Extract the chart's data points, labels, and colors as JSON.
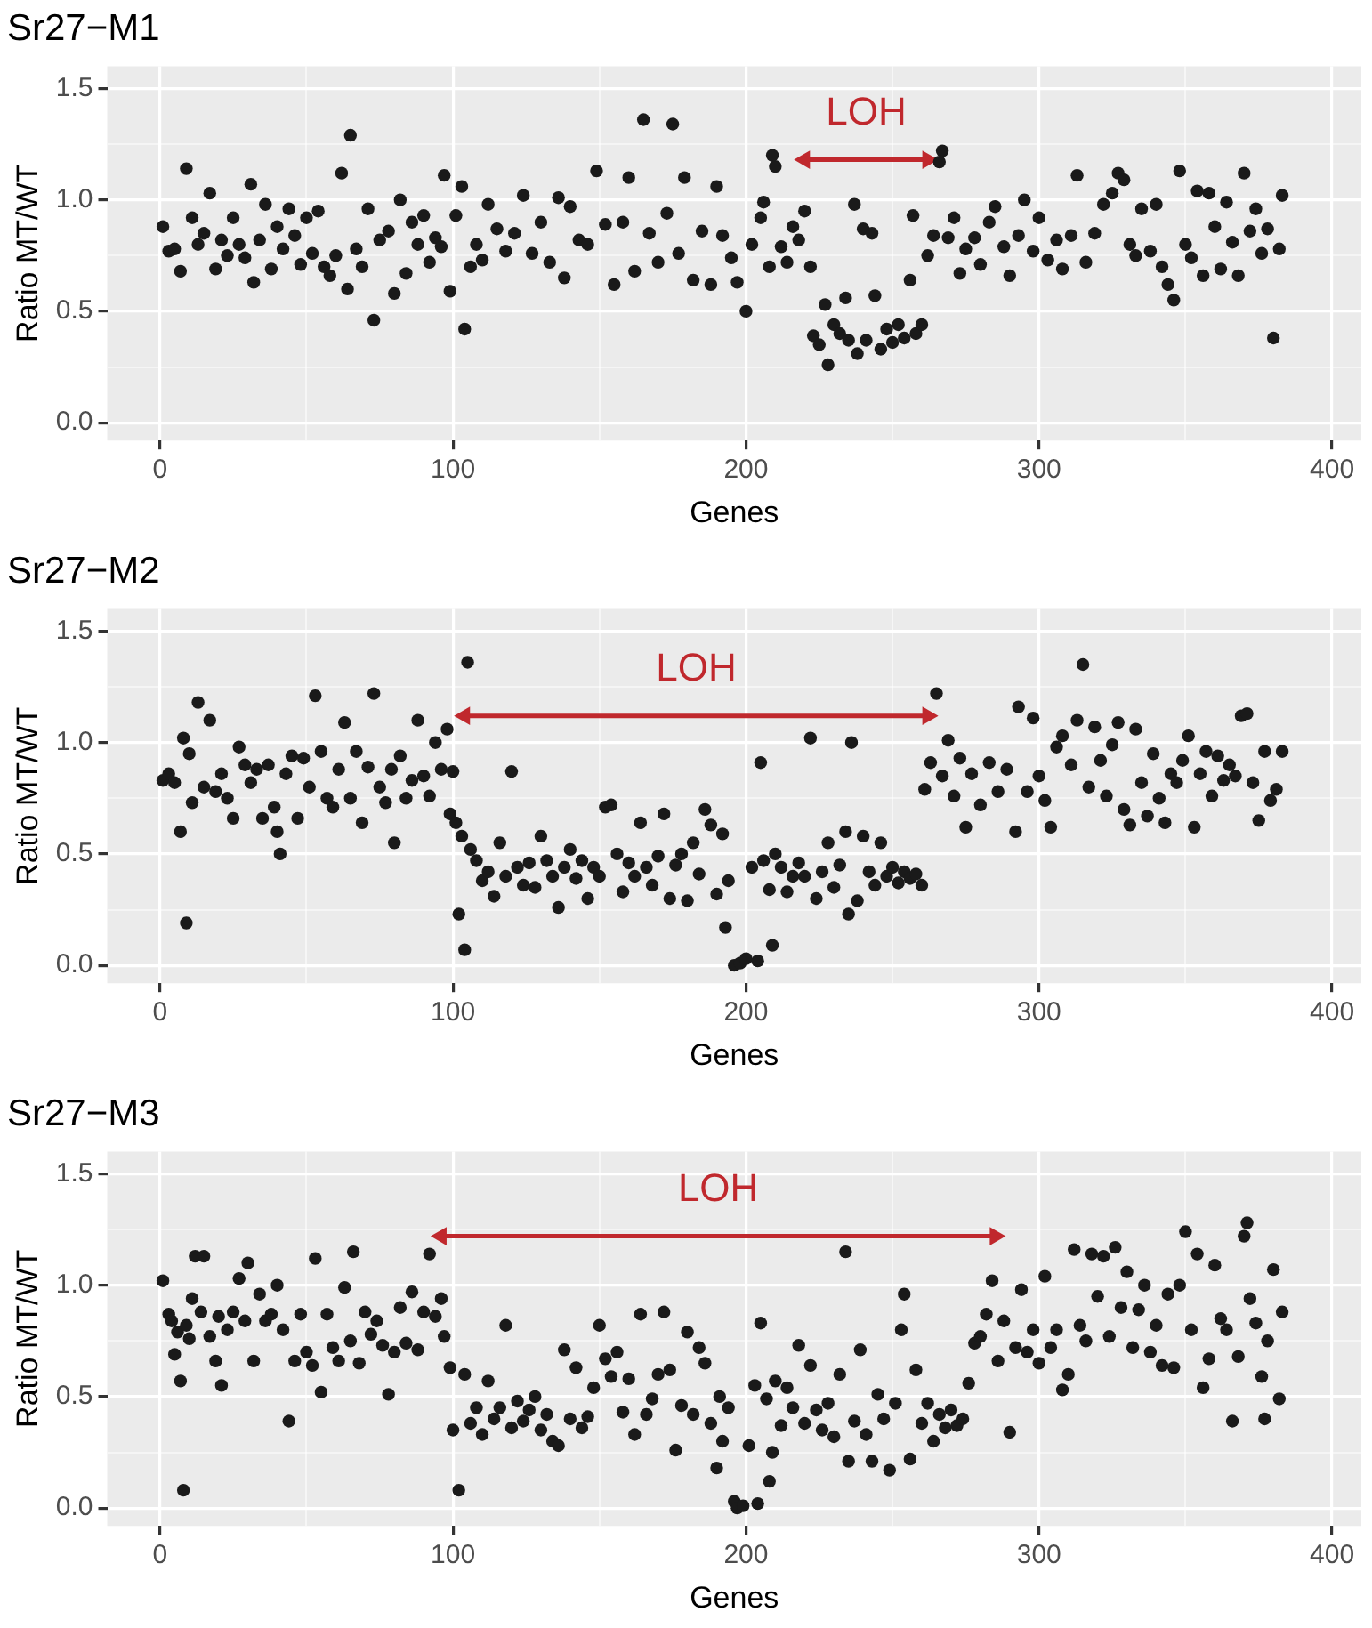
{
  "chart_data": [
    {
      "type": "scatter",
      "title": "Sr27−M1",
      "xlabel": "Genes",
      "ylabel": "Ratio MT/WT",
      "grid": true,
      "series": [
        {
          "type": "scatter",
          "color": "#1a1a1a",
          "marker": "circle",
          "x": [
            1,
            3,
            5,
            7,
            9,
            11,
            13,
            15,
            17,
            19,
            21,
            23,
            25,
            27,
            29,
            31,
            32,
            34,
            36,
            38,
            40,
            42,
            44,
            46,
            48,
            50,
            52,
            54,
            56,
            58,
            60,
            62,
            64,
            65,
            67,
            69,
            71,
            73,
            75,
            78,
            80,
            82,
            84,
            86,
            88,
            90,
            92,
            94,
            96,
            97,
            99,
            101,
            103,
            104,
            106,
            108,
            110,
            112,
            115,
            118,
            121,
            124,
            127,
            130,
            133,
            136,
            138,
            140,
            143,
            146,
            149,
            152,
            155,
            158,
            160,
            162,
            165,
            167,
            170,
            173,
            175,
            177,
            179,
            182,
            185,
            188,
            190,
            192,
            195,
            197,
            200,
            202,
            205,
            206,
            208,
            209,
            210,
            212,
            214,
            216,
            218,
            220,
            222,
            223,
            225,
            227,
            228,
            230,
            232,
            234,
            235,
            237,
            238,
            240,
            241,
            243,
            244,
            246,
            248,
            250,
            252,
            254,
            256,
            257,
            258,
            260,
            262,
            264,
            266,
            267,
            269,
            271,
            273,
            275,
            278,
            280,
            283,
            285,
            288,
            290,
            293,
            295,
            298,
            300,
            303,
            306,
            308,
            311,
            313,
            316,
            319,
            322,
            325,
            327,
            329,
            331,
            333,
            335,
            338,
            340,
            342,
            344,
            346,
            348,
            350,
            352,
            354,
            356,
            358,
            360,
            362,
            364,
            366,
            368,
            370,
            372,
            374,
            376,
            378,
            380,
            382,
            383
          ],
          "values": [
            0.88,
            0.77,
            0.78,
            0.68,
            1.14,
            0.92,
            0.8,
            0.85,
            1.03,
            0.69,
            0.82,
            0.75,
            0.92,
            0.8,
            0.74,
            1.07,
            0.63,
            0.82,
            0.98,
            0.69,
            0.88,
            0.78,
            0.96,
            0.84,
            0.71,
            0.92,
            0.76,
            0.95,
            0.7,
            0.66,
            0.75,
            1.12,
            0.6,
            1.29,
            0.78,
            0.7,
            0.96,
            0.46,
            0.82,
            0.86,
            0.58,
            1.0,
            0.67,
            0.9,
            0.8,
            0.93,
            0.72,
            0.83,
            0.79,
            1.11,
            0.59,
            0.93,
            1.06,
            0.42,
            0.7,
            0.8,
            0.73,
            0.98,
            0.87,
            0.77,
            0.85,
            1.02,
            0.76,
            0.9,
            0.72,
            1.01,
            0.65,
            0.97,
            0.82,
            0.8,
            1.13,
            0.89,
            0.62,
            0.9,
            1.1,
            0.68,
            1.36,
            0.85,
            0.72,
            0.94,
            1.34,
            0.76,
            1.1,
            0.64,
            0.86,
            0.62,
            1.06,
            0.84,
            0.74,
            0.63,
            0.5,
            0.8,
            0.92,
            0.99,
            0.7,
            1.2,
            1.15,
            0.79,
            0.72,
            0.88,
            0.82,
            0.95,
            0.7,
            0.39,
            0.35,
            0.53,
            0.26,
            0.44,
            0.4,
            0.56,
            0.37,
            0.98,
            0.31,
            0.87,
            0.37,
            0.85,
            0.57,
            0.33,
            0.42,
            0.36,
            0.44,
            0.38,
            0.64,
            0.93,
            0.4,
            0.44,
            0.75,
            0.84,
            1.17,
            1.22,
            0.83,
            0.92,
            0.67,
            0.78,
            0.83,
            0.71,
            0.9,
            0.97,
            0.79,
            0.66,
            0.84,
            1.0,
            0.77,
            0.92,
            0.73,
            0.82,
            0.69,
            0.84,
            1.11,
            0.72,
            0.85,
            0.98,
            1.03,
            1.12,
            1.09,
            0.8,
            0.75,
            0.96,
            0.77,
            0.98,
            0.7,
            0.62,
            0.55,
            1.13,
            0.8,
            0.74,
            1.04,
            0.66,
            1.03,
            0.88,
            0.69,
            0.99,
            0.81,
            0.66,
            1.12,
            0.86,
            0.96,
            0.76,
            0.87,
            0.38,
            0.78,
            1.02
          ]
        },
        {
          "type": "line",
          "color": "#c0282d",
          "marker": "triangle",
          "x": [
            220,
            262
          ],
          "values": [
            1.18,
            1.18
          ]
        }
      ],
      "xlim": [
        -18,
        410
      ],
      "ylim": [
        -0.08,
        1.6
      ],
      "xticks": [
        0,
        {
          "value": 50,
          "label": null
        },
        100,
        {
          "value": 150,
          "label": null
        },
        200,
        {
          "value": 250,
          "label": null
        },
        300,
        {
          "value": 350,
          "label": null
        },
        400
      ],
      "yticks": [
        {
          "value": 0,
          "label": "0.0"
        },
        {
          "value": 0.25,
          "label": null
        },
        {
          "value": 0.5,
          "label": "0.5"
        },
        {
          "value": 0.75,
          "label": null
        },
        {
          "value": 1,
          "label": "1.0"
        },
        {
          "value": 1.25,
          "label": null
        },
        {
          "value": 1.5,
          "label": "1.5"
        }
      ],
      "annotations": [
        "LOH"
      ]
    },
    {
      "type": "scatter",
      "title": "Sr27−M2",
      "xlabel": "Genes",
      "ylabel": "Ratio MT/WT",
      "grid": true,
      "series": [
        {
          "type": "scatter",
          "color": "#1a1a1a",
          "marker": "circle",
          "x": [
            1,
            3,
            5,
            7,
            8,
            9,
            10,
            11,
            13,
            15,
            17,
            19,
            21,
            23,
            25,
            27,
            29,
            31,
            33,
            35,
            37,
            39,
            40,
            41,
            43,
            45,
            47,
            49,
            51,
            53,
            55,
            57,
            59,
            61,
            63,
            65,
            67,
            69,
            71,
            73,
            75,
            77,
            79,
            80,
            82,
            84,
            86,
            88,
            90,
            92,
            94,
            96,
            98,
            99,
            100,
            101,
            102,
            103,
            104,
            105,
            106,
            108,
            110,
            112,
            114,
            116,
            118,
            120,
            122,
            124,
            126,
            128,
            130,
            132,
            134,
            136,
            138,
            140,
            142,
            144,
            146,
            148,
            150,
            152,
            154,
            156,
            158,
            160,
            162,
            164,
            166,
            168,
            170,
            172,
            174,
            176,
            178,
            180,
            182,
            184,
            186,
            188,
            190,
            192,
            193,
            194,
            196,
            198,
            200,
            202,
            204,
            205,
            206,
            208,
            209,
            210,
            212,
            214,
            216,
            218,
            220,
            222,
            224,
            226,
            228,
            230,
            232,
            234,
            235,
            236,
            238,
            240,
            242,
            244,
            246,
            248,
            250,
            252,
            254,
            256,
            258,
            260,
            261,
            263,
            265,
            267,
            269,
            271,
            273,
            275,
            277,
            280,
            283,
            286,
            289,
            292,
            293,
            296,
            298,
            300,
            302,
            304,
            306,
            308,
            311,
            313,
            315,
            317,
            319,
            321,
            323,
            325,
            327,
            329,
            331,
            333,
            335,
            337,
            339,
            341,
            343,
            345,
            347,
            349,
            351,
            353,
            355,
            357,
            359,
            361,
            363,
            365,
            367,
            369,
            371,
            373,
            375,
            377,
            379,
            381,
            383
          ],
          "values": [
            0.83,
            0.86,
            0.82,
            0.6,
            1.02,
            0.19,
            0.95,
            0.73,
            1.18,
            0.8,
            1.1,
            0.78,
            0.86,
            0.75,
            0.66,
            0.98,
            0.9,
            0.82,
            0.88,
            0.66,
            0.9,
            0.71,
            0.6,
            0.5,
            0.86,
            0.94,
            0.66,
            0.93,
            0.8,
            1.21,
            0.96,
            0.75,
            0.71,
            0.88,
            1.09,
            0.75,
            0.96,
            0.64,
            0.89,
            1.22,
            0.8,
            0.73,
            0.88,
            0.55,
            0.94,
            0.75,
            0.83,
            1.1,
            0.85,
            0.76,
            1.0,
            0.88,
            1.06,
            0.68,
            0.87,
            0.64,
            0.23,
            0.58,
            0.07,
            1.36,
            0.52,
            0.47,
            0.38,
            0.42,
            0.31,
            0.55,
            0.4,
            0.87,
            0.44,
            0.36,
            0.46,
            0.35,
            0.58,
            0.47,
            0.4,
            0.26,
            0.44,
            0.52,
            0.39,
            0.47,
            0.3,
            0.44,
            0.4,
            0.71,
            0.72,
            0.5,
            0.33,
            0.46,
            0.4,
            0.64,
            0.44,
            0.36,
            0.49,
            0.68,
            0.3,
            0.45,
            0.5,
            0.29,
            0.55,
            0.41,
            0.7,
            0.63,
            0.32,
            0.59,
            0.17,
            0.38,
            0.0,
            0.01,
            0.03,
            0.44,
            0.02,
            0.91,
            0.47,
            0.34,
            0.09,
            0.5,
            0.44,
            0.33,
            0.4,
            0.46,
            0.4,
            1.02,
            0.3,
            0.42,
            0.55,
            0.35,
            0.45,
            0.6,
            0.23,
            1.0,
            0.29,
            0.58,
            0.42,
            0.36,
            0.55,
            0.4,
            0.44,
            0.37,
            0.42,
            0.39,
            0.41,
            0.36,
            0.79,
            0.91,
            1.22,
            0.85,
            1.01,
            0.76,
            0.93,
            0.62,
            0.86,
            0.72,
            0.91,
            0.78,
            0.88,
            0.6,
            1.16,
            0.78,
            1.11,
            0.85,
            0.74,
            0.62,
            0.98,
            1.03,
            0.9,
            1.1,
            1.35,
            0.8,
            1.07,
            0.92,
            0.76,
            0.99,
            1.09,
            0.7,
            0.63,
            1.06,
            0.82,
            0.67,
            0.95,
            0.75,
            0.64,
            0.86,
            0.82,
            0.92,
            1.03,
            0.62,
            0.86,
            0.96,
            0.76,
            0.94,
            0.83,
            0.9,
            0.85,
            1.12,
            1.13,
            0.82,
            0.65,
            0.96,
            0.74,
            0.79,
            0.96
          ]
        },
        {
          "type": "line",
          "color": "#c0282d",
          "marker": "triangle",
          "x": [
            104,
            262
          ],
          "values": [
            1.12,
            1.12
          ]
        }
      ],
      "xlim": [
        -18,
        410
      ],
      "ylim": [
        -0.08,
        1.6
      ],
      "xticks": [
        0,
        {
          "value": 50,
          "label": null
        },
        100,
        {
          "value": 150,
          "label": null
        },
        200,
        {
          "value": 250,
          "label": null
        },
        300,
        {
          "value": 350,
          "label": null
        },
        400
      ],
      "yticks": [
        {
          "value": 0,
          "label": "0.0"
        },
        {
          "value": 0.25,
          "label": null
        },
        {
          "value": 0.5,
          "label": "0.5"
        },
        {
          "value": 0.75,
          "label": null
        },
        {
          "value": 1,
          "label": "1.0"
        },
        {
          "value": 1.25,
          "label": null
        },
        {
          "value": 1.5,
          "label": "1.5"
        }
      ],
      "annotations": [
        "LOH"
      ]
    },
    {
      "type": "scatter",
      "title": "Sr27−M3",
      "xlabel": "Genes",
      "ylabel": "Ratio MT/WT",
      "grid": true,
      "series": [
        {
          "type": "scatter",
          "color": "#1a1a1a",
          "marker": "circle",
          "x": [
            1,
            3,
            4,
            5,
            6,
            7,
            8,
            9,
            10,
            11,
            12,
            14,
            15,
            17,
            19,
            20,
            21,
            23,
            25,
            27,
            29,
            30,
            32,
            34,
            36,
            38,
            40,
            42,
            44,
            46,
            48,
            50,
            52,
            53,
            55,
            57,
            59,
            61,
            63,
            65,
            66,
            68,
            70,
            72,
            74,
            76,
            78,
            80,
            82,
            84,
            86,
            88,
            90,
            92,
            94,
            96,
            97,
            99,
            100,
            102,
            104,
            106,
            108,
            110,
            112,
            114,
            116,
            118,
            120,
            122,
            124,
            126,
            128,
            130,
            132,
            134,
            136,
            138,
            140,
            142,
            144,
            146,
            148,
            150,
            152,
            154,
            156,
            158,
            160,
            162,
            164,
            166,
            168,
            170,
            172,
            174,
            176,
            178,
            180,
            182,
            184,
            186,
            188,
            190,
            191,
            192,
            194,
            196,
            197,
            199,
            201,
            203,
            204,
            205,
            207,
            208,
            209,
            210,
            212,
            214,
            216,
            218,
            220,
            222,
            224,
            226,
            228,
            230,
            232,
            234,
            235,
            237,
            239,
            241,
            243,
            245,
            247,
            249,
            251,
            253,
            254,
            256,
            258,
            260,
            262,
            264,
            266,
            268,
            270,
            272,
            274,
            276,
            278,
            280,
            282,
            284,
            286,
            288,
            290,
            292,
            294,
            296,
            298,
            300,
            302,
            304,
            306,
            308,
            310,
            312,
            314,
            316,
            318,
            320,
            322,
            324,
            326,
            328,
            330,
            332,
            334,
            336,
            338,
            340,
            342,
            344,
            346,
            348,
            350,
            352,
            354,
            356,
            358,
            360,
            362,
            364,
            366,
            368,
            370,
            371,
            372,
            374,
            376,
            377,
            378,
            380,
            382,
            383
          ],
          "values": [
            1.02,
            0.87,
            0.84,
            0.69,
            0.79,
            0.57,
            0.08,
            0.82,
            0.76,
            0.94,
            1.13,
            0.88,
            1.13,
            0.77,
            0.66,
            0.86,
            0.55,
            0.8,
            0.88,
            1.03,
            0.84,
            1.1,
            0.66,
            0.96,
            0.84,
            0.87,
            1.0,
            0.8,
            0.39,
            0.66,
            0.87,
            0.7,
            0.64,
            1.12,
            0.52,
            0.87,
            0.72,
            0.66,
            0.99,
            0.75,
            1.15,
            0.65,
            0.88,
            0.78,
            0.84,
            0.73,
            0.51,
            0.7,
            0.9,
            0.74,
            0.97,
            0.71,
            0.88,
            1.14,
            0.86,
            0.94,
            0.77,
            0.63,
            0.35,
            0.08,
            0.6,
            0.38,
            0.45,
            0.33,
            0.57,
            0.4,
            0.45,
            0.82,
            0.36,
            0.48,
            0.39,
            0.44,
            0.5,
            0.35,
            0.42,
            0.3,
            0.28,
            0.71,
            0.4,
            0.63,
            0.36,
            0.41,
            0.54,
            0.82,
            0.67,
            0.59,
            0.7,
            0.43,
            0.58,
            0.33,
            0.87,
            0.42,
            0.49,
            0.6,
            0.88,
            0.62,
            0.26,
            0.46,
            0.79,
            0.42,
            0.72,
            0.65,
            0.38,
            0.18,
            0.5,
            0.3,
            0.45,
            0.03,
            0.0,
            0.01,
            0.28,
            0.55,
            0.02,
            0.83,
            0.49,
            0.12,
            0.25,
            0.57,
            0.37,
            0.54,
            0.45,
            0.73,
            0.38,
            0.64,
            0.44,
            0.35,
            0.47,
            0.32,
            0.6,
            1.15,
            0.21,
            0.39,
            0.71,
            0.33,
            0.21,
            0.51,
            0.4,
            0.17,
            0.47,
            0.8,
            0.96,
            0.22,
            0.62,
            0.38,
            0.47,
            0.3,
            0.42,
            0.36,
            0.44,
            0.37,
            0.4,
            0.56,
            0.74,
            0.77,
            0.87,
            1.02,
            0.66,
            0.84,
            0.34,
            0.72,
            0.98,
            0.7,
            0.8,
            0.65,
            1.04,
            0.72,
            0.8,
            0.53,
            0.6,
            1.16,
            0.82,
            0.75,
            1.14,
            0.95,
            1.13,
            0.77,
            1.17,
            0.9,
            1.06,
            0.72,
            0.89,
            1.0,
            0.7,
            0.82,
            0.64,
            0.96,
            0.63,
            1.0,
            1.24,
            0.8,
            1.14,
            0.54,
            0.67,
            1.09,
            0.85,
            0.8,
            0.39,
            0.68,
            1.22,
            1.28,
            0.94,
            0.83,
            0.59,
            0.4,
            0.75,
            1.07,
            0.49,
            0.88
          ]
        },
        {
          "type": "line",
          "color": "#c0282d",
          "marker": "triangle",
          "x": [
            96,
            285
          ],
          "values": [
            1.22,
            1.22
          ]
        }
      ],
      "xlim": [
        -18,
        410
      ],
      "ylim": [
        -0.08,
        1.6
      ],
      "xticks": [
        0,
        {
          "value": 50,
          "label": null
        },
        100,
        {
          "value": 150,
          "label": null
        },
        200,
        {
          "value": 250,
          "label": null
        },
        300,
        {
          "value": 350,
          "label": null
        },
        400
      ],
      "yticks": [
        {
          "value": 0,
          "label": "0.0"
        },
        {
          "value": 0.25,
          "label": null
        },
        {
          "value": 0.5,
          "label": "0.5"
        },
        {
          "value": 0.75,
          "label": null
        },
        {
          "value": 1,
          "label": "1.0"
        },
        {
          "value": 1.25,
          "label": null
        },
        {
          "value": 1.5,
          "label": "1.5"
        }
      ],
      "annotations": [
        "LOH"
      ]
    }
  ]
}
